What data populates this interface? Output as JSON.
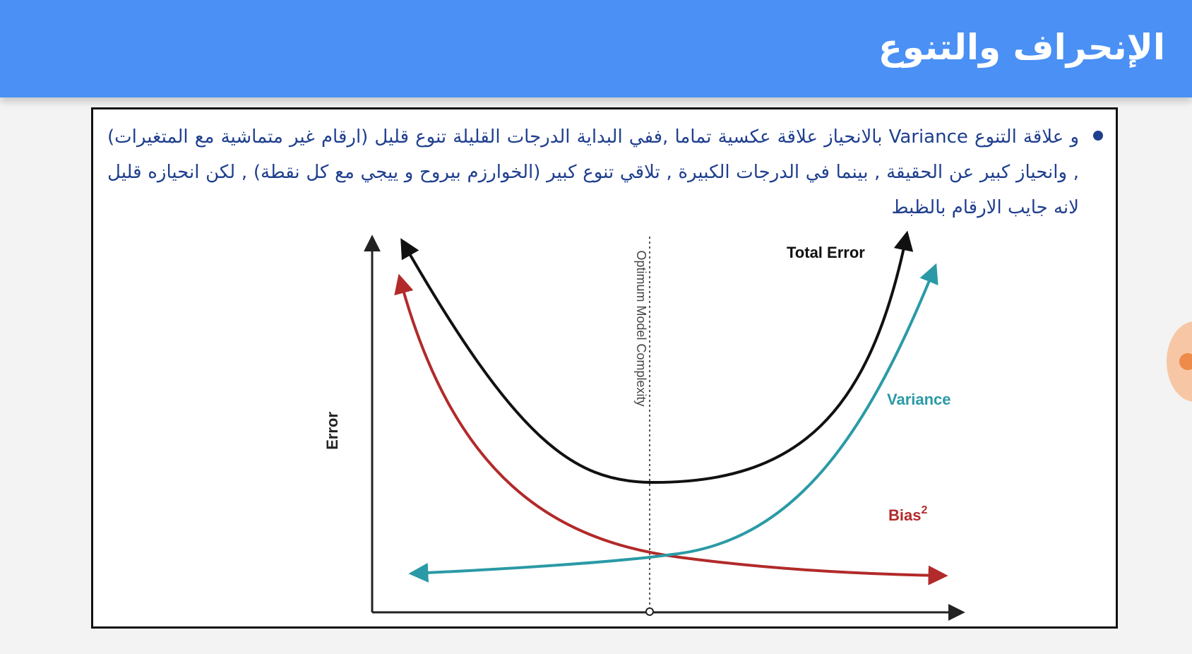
{
  "slide": {
    "title": "الإنحراف والتنوع"
  },
  "bullet": {
    "text": "و علاقة التنوع Variance بالانحياز علاقة عكسية تماما ,ففي البداية  الدرجات القليلة تنوع قليل (ارقام غير متماشية مع المتغيرات) , وانحياز كبير عن الحقيقة , بينما في الدرجات الكبيرة , تلاقي تنوع كبير  (الخوارزم بيروح و ييجي مع كل نقطة) , لكن انحيازه قليل لانه جايب الارقام بالظبط"
  },
  "diagram": {
    "y_axis_label": "Error",
    "optimum_label": "Optimum Model Complexity",
    "total_error_label": "Total Error",
    "variance_label": "Variance",
    "bias_label": "Bias",
    "bias_exponent": "2",
    "colors": {
      "total_error": "#111111",
      "variance": "#2a9aa6",
      "bias": "#b22a2a",
      "axis": "#222222"
    }
  }
}
